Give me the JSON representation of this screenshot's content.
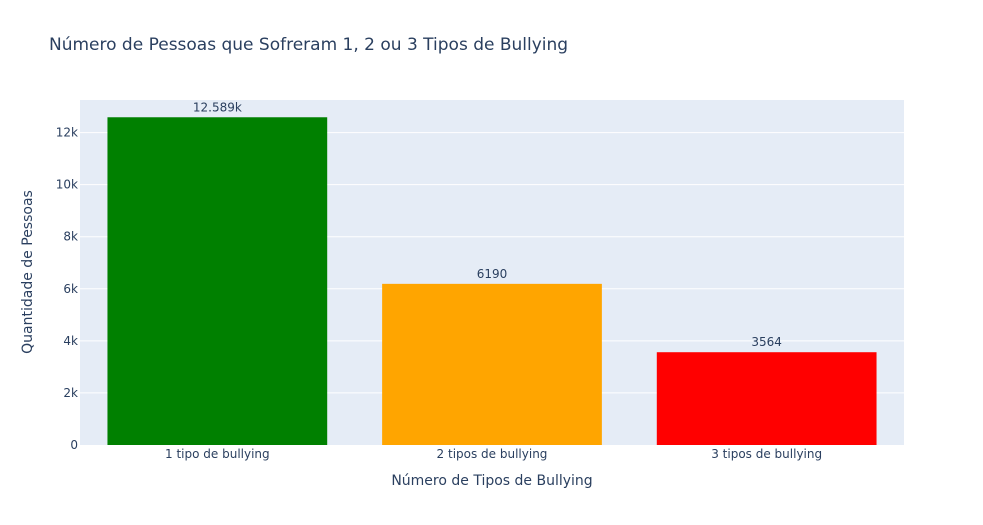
{
  "chart_data": {
    "type": "bar",
    "title": "Número de Pessoas que Sofreram 1, 2 ou 3 Tipos de Bullying",
    "xlabel": "Número de Tipos de Bullying",
    "ylabel": "Quantidade de Pessoas",
    "categories": [
      "1 tipo de bullying",
      "2 tipos de bullying",
      "3 tipos de bullying"
    ],
    "values": [
      12589,
      6190,
      3564
    ],
    "value_labels": [
      "12.589k",
      "6190",
      "3564"
    ],
    "colors": [
      "#008000",
      "#FFA500",
      "#FF0000"
    ],
    "ylim": [
      0,
      13252
    ],
    "yticks": [
      0,
      2000,
      4000,
      6000,
      8000,
      10000,
      12000
    ],
    "ytick_labels": [
      "0",
      "2k",
      "4k",
      "6k",
      "8k",
      "10k",
      "12k"
    ],
    "grid": true,
    "legend": "none",
    "plot_background": "#E5ECF6"
  }
}
